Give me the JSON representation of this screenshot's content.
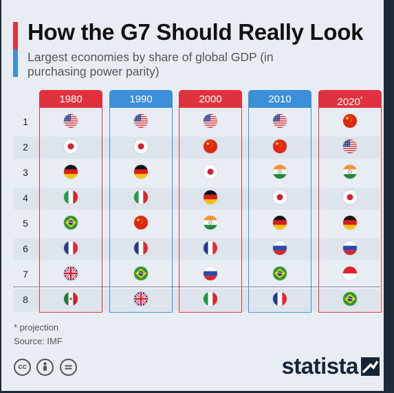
{
  "title": "How the G7 Should Really Look",
  "subtitle": "Largest economies by share of global GDP (in purchasing power parity)",
  "notes": [
    "* projection",
    "Source: IMF"
  ],
  "brand": "statista",
  "license_icons": [
    "creative-commons-icon",
    "attribution-person-icon",
    "no-derivatives-icon"
  ],
  "colors": {
    "red": "#e0323e",
    "blue": "#3c8fd9",
    "background": "#e8edf3",
    "brand": "#162535"
  },
  "chart_data": {
    "type": "table",
    "columns": [
      {
        "year": "1980",
        "color": "#e0323e"
      },
      {
        "year": "1990",
        "color": "#3c8fd9"
      },
      {
        "year": "2000",
        "color": "#e0323e"
      },
      {
        "year": "2010",
        "color": "#3c8fd9"
      },
      {
        "year": "2020",
        "projection": true,
        "color": "#e0323e"
      }
    ],
    "ranks": [
      "1",
      "2",
      "3",
      "4",
      "5",
      "6",
      "7",
      "8"
    ],
    "rankings": {
      "1980": [
        "United States",
        "Japan",
        "Germany",
        "Italy",
        "Brazil",
        "France",
        "United Kingdom",
        "Mexico"
      ],
      "1990": [
        "United States",
        "Japan",
        "Germany",
        "Italy",
        "China",
        "France",
        "Brazil",
        "United Kingdom"
      ],
      "2000": [
        "United States",
        "China",
        "Japan",
        "Germany",
        "India",
        "France",
        "Russia",
        "Italy"
      ],
      "2010": [
        "United States",
        "China",
        "India",
        "Japan",
        "Germany",
        "Russia",
        "Brazil",
        "France"
      ],
      "2020": [
        "China",
        "United States",
        "India",
        "Japan",
        "Germany",
        "Russia",
        "Indonesia",
        "Brazil"
      ]
    },
    "g7_cutoff_rank": 7
  }
}
